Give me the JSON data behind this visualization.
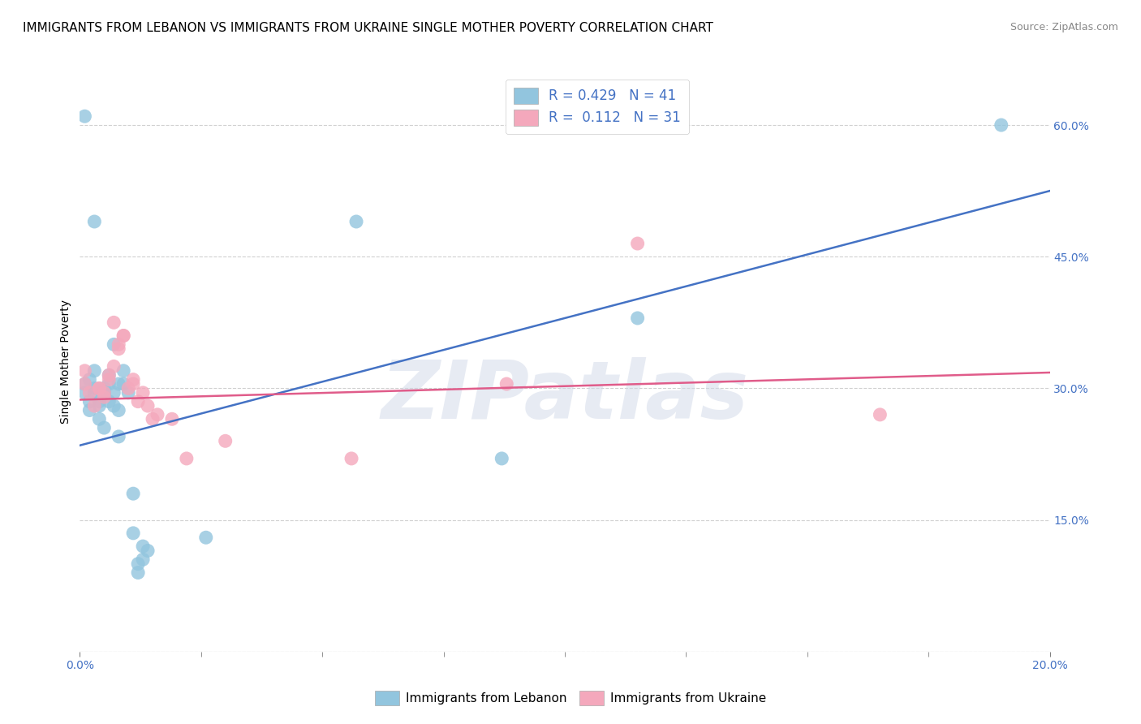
{
  "title": "IMMIGRANTS FROM LEBANON VS IMMIGRANTS FROM UKRAINE SINGLE MOTHER POVERTY CORRELATION CHART",
  "source": "Source: ZipAtlas.com",
  "ylabel": "Single Mother Poverty",
  "legend_label_blue": "Immigrants from Lebanon",
  "legend_label_pink": "Immigrants from Ukraine",
  "blue_color": "#92c5de",
  "pink_color": "#f4a8bc",
  "blue_line_color": "#4472c4",
  "pink_line_color": "#e05c8a",
  "blue_scatter": [
    [
      0.001,
      0.61
    ],
    [
      0.003,
      0.49
    ],
    [
      0.001,
      0.305
    ],
    [
      0.001,
      0.295
    ],
    [
      0.002,
      0.285
    ],
    [
      0.002,
      0.31
    ],
    [
      0.002,
      0.275
    ],
    [
      0.003,
      0.295
    ],
    [
      0.003,
      0.3
    ],
    [
      0.003,
      0.32
    ],
    [
      0.004,
      0.285
    ],
    [
      0.004,
      0.265
    ],
    [
      0.004,
      0.28
    ],
    [
      0.005,
      0.295
    ],
    [
      0.005,
      0.255
    ],
    [
      0.005,
      0.3
    ],
    [
      0.005,
      0.295
    ],
    [
      0.006,
      0.285
    ],
    [
      0.006,
      0.315
    ],
    [
      0.006,
      0.305
    ],
    [
      0.007,
      0.295
    ],
    [
      0.007,
      0.35
    ],
    [
      0.007,
      0.28
    ],
    [
      0.008,
      0.275
    ],
    [
      0.008,
      0.245
    ],
    [
      0.008,
      0.305
    ],
    [
      0.009,
      0.305
    ],
    [
      0.009,
      0.32
    ],
    [
      0.01,
      0.295
    ],
    [
      0.011,
      0.18
    ],
    [
      0.011,
      0.135
    ],
    [
      0.012,
      0.1
    ],
    [
      0.012,
      0.09
    ],
    [
      0.013,
      0.105
    ],
    [
      0.013,
      0.12
    ],
    [
      0.014,
      0.115
    ],
    [
      0.026,
      0.13
    ],
    [
      0.057,
      0.49
    ],
    [
      0.087,
      0.22
    ],
    [
      0.115,
      0.38
    ],
    [
      0.19,
      0.6
    ]
  ],
  "pink_scatter": [
    [
      0.001,
      0.32
    ],
    [
      0.001,
      0.305
    ],
    [
      0.002,
      0.295
    ],
    [
      0.003,
      0.28
    ],
    [
      0.004,
      0.3
    ],
    [
      0.004,
      0.3
    ],
    [
      0.005,
      0.295
    ],
    [
      0.005,
      0.29
    ],
    [
      0.006,
      0.31
    ],
    [
      0.006,
      0.315
    ],
    [
      0.007,
      0.325
    ],
    [
      0.007,
      0.375
    ],
    [
      0.008,
      0.35
    ],
    [
      0.008,
      0.345
    ],
    [
      0.009,
      0.36
    ],
    [
      0.009,
      0.36
    ],
    [
      0.01,
      0.3
    ],
    [
      0.011,
      0.31
    ],
    [
      0.011,
      0.305
    ],
    [
      0.012,
      0.285
    ],
    [
      0.013,
      0.295
    ],
    [
      0.014,
      0.28
    ],
    [
      0.015,
      0.265
    ],
    [
      0.016,
      0.27
    ],
    [
      0.019,
      0.265
    ],
    [
      0.022,
      0.22
    ],
    [
      0.03,
      0.24
    ],
    [
      0.056,
      0.22
    ],
    [
      0.088,
      0.305
    ],
    [
      0.115,
      0.465
    ],
    [
      0.165,
      0.27
    ]
  ],
  "blue_line_x": [
    0.0,
    0.2
  ],
  "blue_line_y": [
    0.235,
    0.525
  ],
  "pink_line_x": [
    0.0,
    0.2
  ],
  "pink_line_y": [
    0.287,
    0.318
  ],
  "watermark": "ZIPatlas",
  "xlim": [
    0.0,
    0.2
  ],
  "ylim": [
    0.0,
    0.66
  ],
  "ytick_values": [
    0.0,
    0.15,
    0.3,
    0.45,
    0.6
  ],
  "ytick_labels": [
    "",
    "15.0%",
    "30.0%",
    "45.0%",
    "60.0%"
  ],
  "background_color": "#ffffff",
  "grid_color": "#d0d0d0",
  "title_fontsize": 11,
  "axis_label_fontsize": 10,
  "tick_fontsize": 10,
  "source_fontsize": 9,
  "legend_R_blue": "R = 0.429",
  "legend_N_blue": "N = 41",
  "legend_R_pink": "R =  0.112",
  "legend_N_pink": "N = 31"
}
